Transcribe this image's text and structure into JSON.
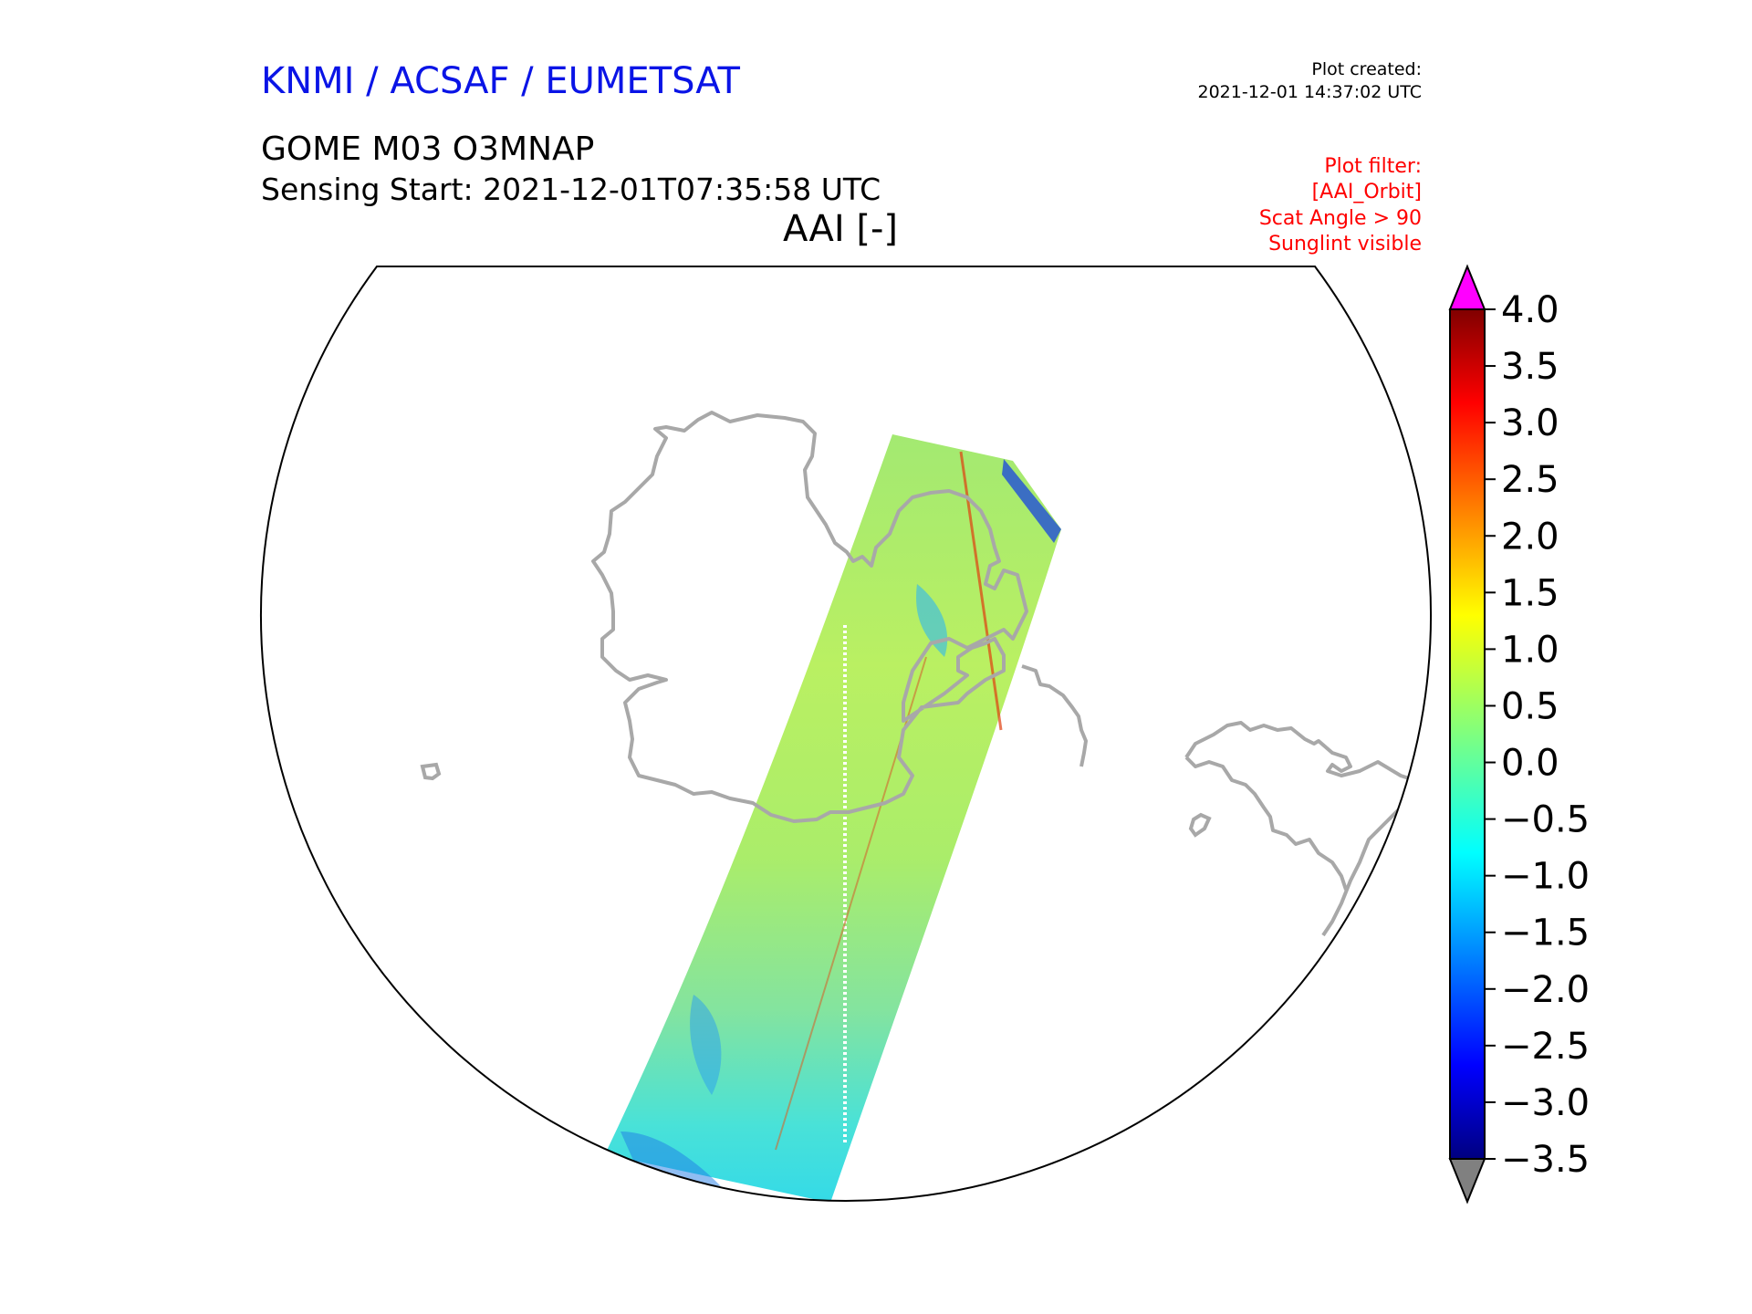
{
  "header": {
    "organization": "KNMI / ACSAF / EUMETSAT",
    "plot_created_label": "Plot created:",
    "plot_created_date": "2021-12-01 14:37:02 UTC",
    "product": "GOME M03 O3MNAP",
    "sensing_start": "Sensing Start: 2021-12-01T07:35:58 UTC",
    "variable_title": "AAI [-]"
  },
  "filter": {
    "lines": [
      "Plot filter:",
      "[AAI_Orbit]",
      "Scat Angle > 90",
      "Sunglint visible"
    ]
  },
  "colors": {
    "org_text": "#0a14e6",
    "filter_text": "#ff0000",
    "coastline": "#a8a8a8",
    "extend_max": "#ff00ff",
    "extend_min": "#808080",
    "colormap": "jet"
  },
  "colorbar": {
    "min": -3.5,
    "max": 4.0,
    "ticks": [
      "4.0",
      "3.5",
      "3.0",
      "2.5",
      "2.0",
      "1.5",
      "1.0",
      "0.5",
      "0.0",
      "−0.5",
      "−1.0",
      "−1.5",
      "−2.0",
      "−2.5",
      "−3.0",
      "−3.5"
    ],
    "extend": "both"
  },
  "map": {
    "projection": "south-polar",
    "swath_typical_aai": [
      -1.0,
      1.0
    ]
  }
}
